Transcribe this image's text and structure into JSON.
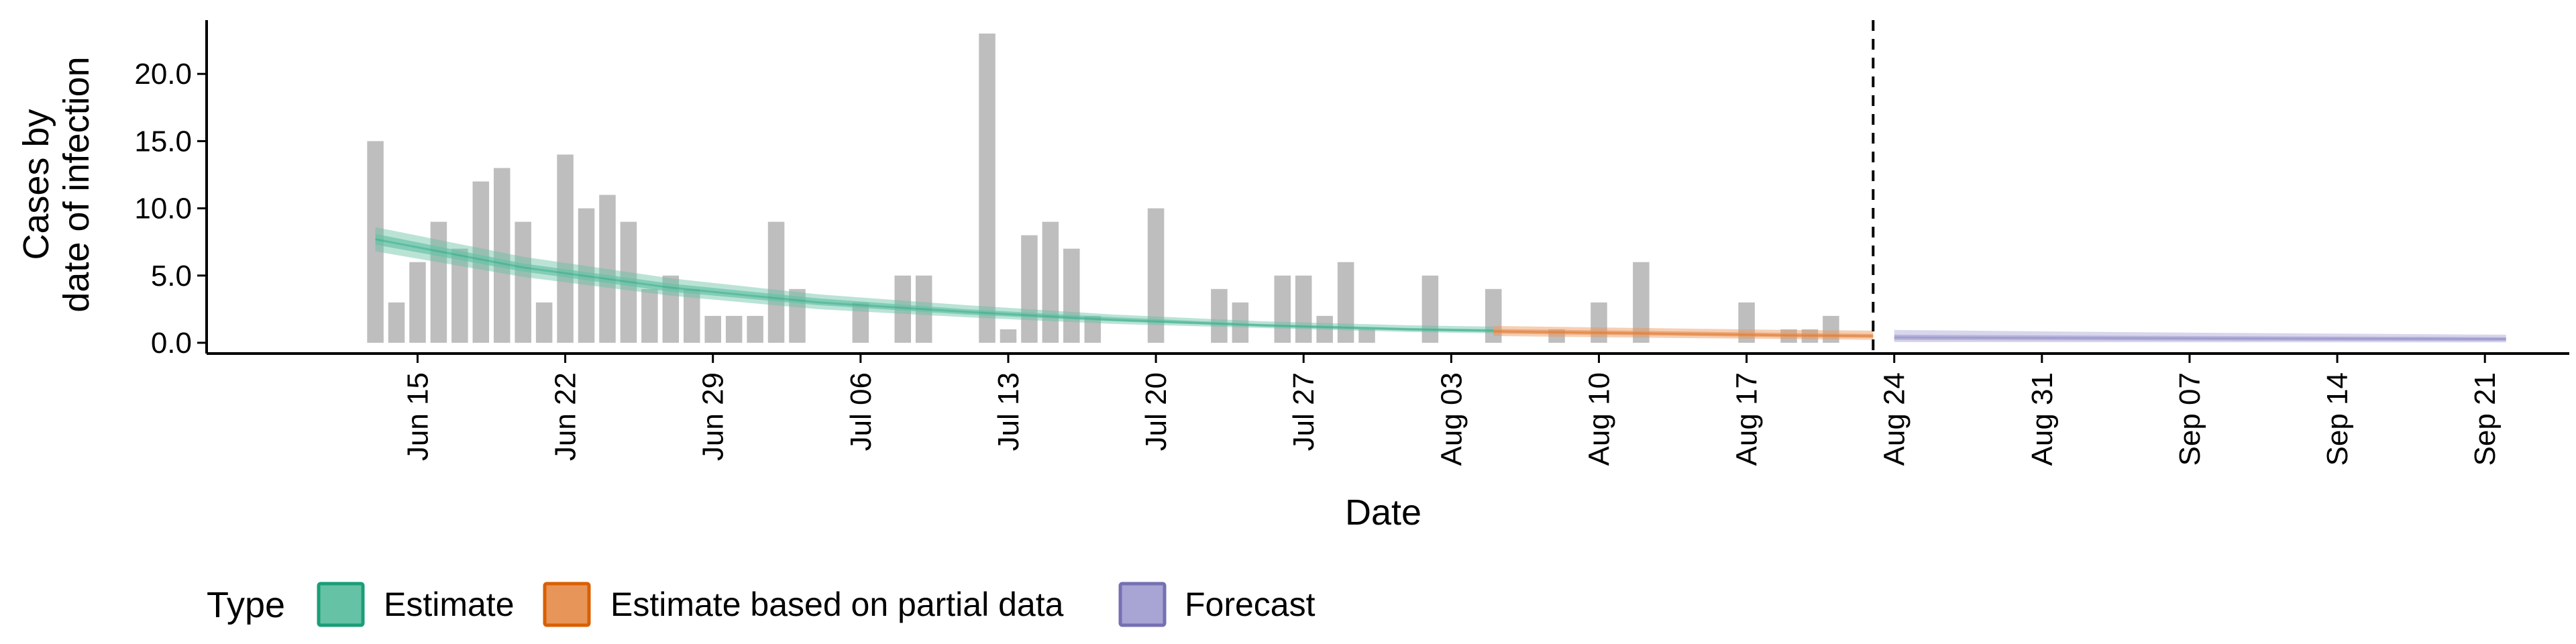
{
  "chart_data": {
    "type": "bar",
    "xlabel": "Date",
    "ylabel": [
      "Cases by",
      "date of infection"
    ],
    "ylim": [
      -0.8,
      24
    ],
    "y_ticks": [
      0,
      5,
      10,
      15,
      20
    ],
    "y_tick_labels": [
      "0.0",
      "5.0",
      "10.0",
      "15.0",
      "20.0"
    ],
    "x_range": [
      "2020-06-05",
      "2020-09-25"
    ],
    "x_ticks": [
      "2020-06-15",
      "2020-06-22",
      "2020-06-29",
      "2020-07-06",
      "2020-07-13",
      "2020-07-20",
      "2020-07-27",
      "2020-08-03",
      "2020-08-10",
      "2020-08-17",
      "2020-08-24",
      "2020-08-31",
      "2020-09-07",
      "2020-09-14",
      "2020-09-21"
    ],
    "x_tick_labels": [
      "Jun 15",
      "Jun 22",
      "Jun 29",
      "Jul 06",
      "Jul 13",
      "Jul 20",
      "Jul 27",
      "Aug 03",
      "Aug 10",
      "Aug 17",
      "Aug 24",
      "Aug 31",
      "Sep 07",
      "Sep 14",
      "Sep 21"
    ],
    "vline_date": "2020-08-23",
    "vline_style": "dashed",
    "grid": false,
    "legend_position": "bottom",
    "legend_title": "Type",
    "bar_color": "#bebebe",
    "bars": {
      "dates": [
        "2020-06-13",
        "2020-06-14",
        "2020-06-15",
        "2020-06-16",
        "2020-06-17",
        "2020-06-18",
        "2020-06-19",
        "2020-06-20",
        "2020-06-21",
        "2020-06-22",
        "2020-06-23",
        "2020-06-24",
        "2020-06-25",
        "2020-06-26",
        "2020-06-27",
        "2020-06-28",
        "2020-06-29",
        "2020-06-30",
        "2020-07-01",
        "2020-07-02",
        "2020-07-03",
        "2020-07-06",
        "2020-07-08",
        "2020-07-09",
        "2020-07-12",
        "2020-07-13",
        "2020-07-14",
        "2020-07-15",
        "2020-07-16",
        "2020-07-17",
        "2020-07-20",
        "2020-07-23",
        "2020-07-24",
        "2020-07-26",
        "2020-07-27",
        "2020-07-28",
        "2020-07-29",
        "2020-07-30",
        "2020-08-02",
        "2020-08-05",
        "2020-08-08",
        "2020-08-10",
        "2020-08-12",
        "2020-08-17",
        "2020-08-19",
        "2020-08-20",
        "2020-08-21"
      ],
      "values": [
        15,
        3,
        6,
        9,
        7,
        12,
        13,
        9,
        3,
        14,
        10,
        11,
        9,
        4,
        5,
        4,
        2,
        2,
        2,
        9,
        4,
        3,
        5,
        5,
        23,
        1,
        8,
        9,
        7,
        2,
        10,
        4,
        3,
        5,
        5,
        2,
        6,
        1,
        5,
        4,
        1,
        3,
        6,
        3,
        1,
        1,
        2
      ]
    },
    "series": [
      {
        "name": "Estimate",
        "color": "#1b9e77",
        "fill": "#66c2a5",
        "x": [
          "2020-06-13",
          "2020-06-20",
          "2020-06-27",
          "2020-07-04",
          "2020-07-11",
          "2020-07-18",
          "2020-07-25",
          "2020-08-01",
          "2020-08-05"
        ],
        "median": [
          7.7,
          5.6,
          4.1,
          3.0,
          2.3,
          1.7,
          1.3,
          1.0,
          0.9
        ],
        "lower_90": [
          6.8,
          4.9,
          3.5,
          2.5,
          1.9,
          1.4,
          1.1,
          0.8,
          0.7
        ],
        "upper_90": [
          8.6,
          6.4,
          4.8,
          3.6,
          2.8,
          2.1,
          1.6,
          1.3,
          1.2
        ],
        "lower_50": [
          7.3,
          5.3,
          3.8,
          2.8,
          2.1,
          1.6,
          1.2,
          0.9,
          0.8
        ],
        "upper_50": [
          8.1,
          5.9,
          4.4,
          3.3,
          2.5,
          1.9,
          1.4,
          1.1,
          1.0
        ]
      },
      {
        "name": "Estimate based on partial data",
        "color": "#d95f02",
        "fill": "#e8955a",
        "x": [
          "2020-08-05",
          "2020-08-12",
          "2020-08-19",
          "2020-08-23"
        ],
        "median": [
          0.85,
          0.7,
          0.55,
          0.5
        ],
        "lower_90": [
          0.5,
          0.38,
          0.28,
          0.22
        ],
        "upper_90": [
          1.25,
          1.1,
          0.95,
          0.9
        ],
        "lower_50": [
          0.68,
          0.55,
          0.42,
          0.37
        ],
        "upper_50": [
          1.02,
          0.88,
          0.72,
          0.66
        ]
      },
      {
        "name": "Forecast",
        "color": "#7570b3",
        "fill": "#a8a4d4",
        "x": [
          "2020-08-24",
          "2020-09-07",
          "2020-09-22"
        ],
        "median": [
          0.4,
          0.33,
          0.28
        ],
        "lower_90": [
          0.05,
          0.04,
          0.03
        ],
        "upper_90": [
          0.95,
          0.75,
          0.6
        ],
        "lower_50": [
          0.2,
          0.16,
          0.13
        ],
        "upper_50": [
          0.6,
          0.5,
          0.42
        ]
      }
    ]
  }
}
